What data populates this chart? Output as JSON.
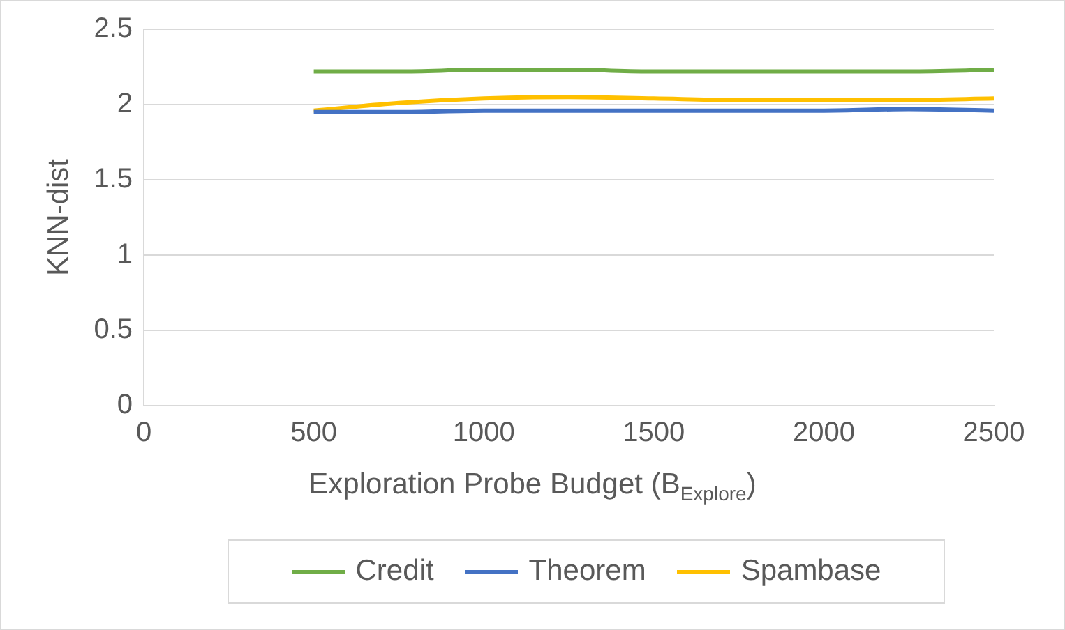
{
  "chart_data": {
    "type": "line",
    "xlabel": "Exploration Probe Budget (B$_{Explore}$)",
    "ylabel": "KNN-dist",
    "x": [
      500,
      750,
      1000,
      1250,
      1500,
      1750,
      2000,
      2250,
      2500
    ],
    "series": [
      {
        "name": "Credit",
        "color": "#70ad47",
        "values": [
          2.22,
          2.22,
          2.23,
          2.23,
          2.22,
          2.22,
          2.22,
          2.22,
          2.23
        ]
      },
      {
        "name": "Theorem",
        "color": "#4472c4",
        "values": [
          1.95,
          1.95,
          1.96,
          1.96,
          1.96,
          1.96,
          1.96,
          1.97,
          1.96
        ]
      },
      {
        "name": "Spambase",
        "color": "#ffc000",
        "values": [
          1.96,
          2.01,
          2.04,
          2.05,
          2.04,
          2.03,
          2.03,
          2.03,
          2.04
        ]
      }
    ],
    "xlim": [
      0,
      2500
    ],
    "xticks": [
      0,
      500,
      1000,
      1500,
      2000,
      2500
    ],
    "ylim": [
      0,
      2.5
    ],
    "yticks": [
      0,
      0.5,
      1,
      1.5,
      2,
      2.5
    ],
    "grid": "y",
    "legend": "bottom",
    "marker": "none",
    "line_style": "solid"
  }
}
